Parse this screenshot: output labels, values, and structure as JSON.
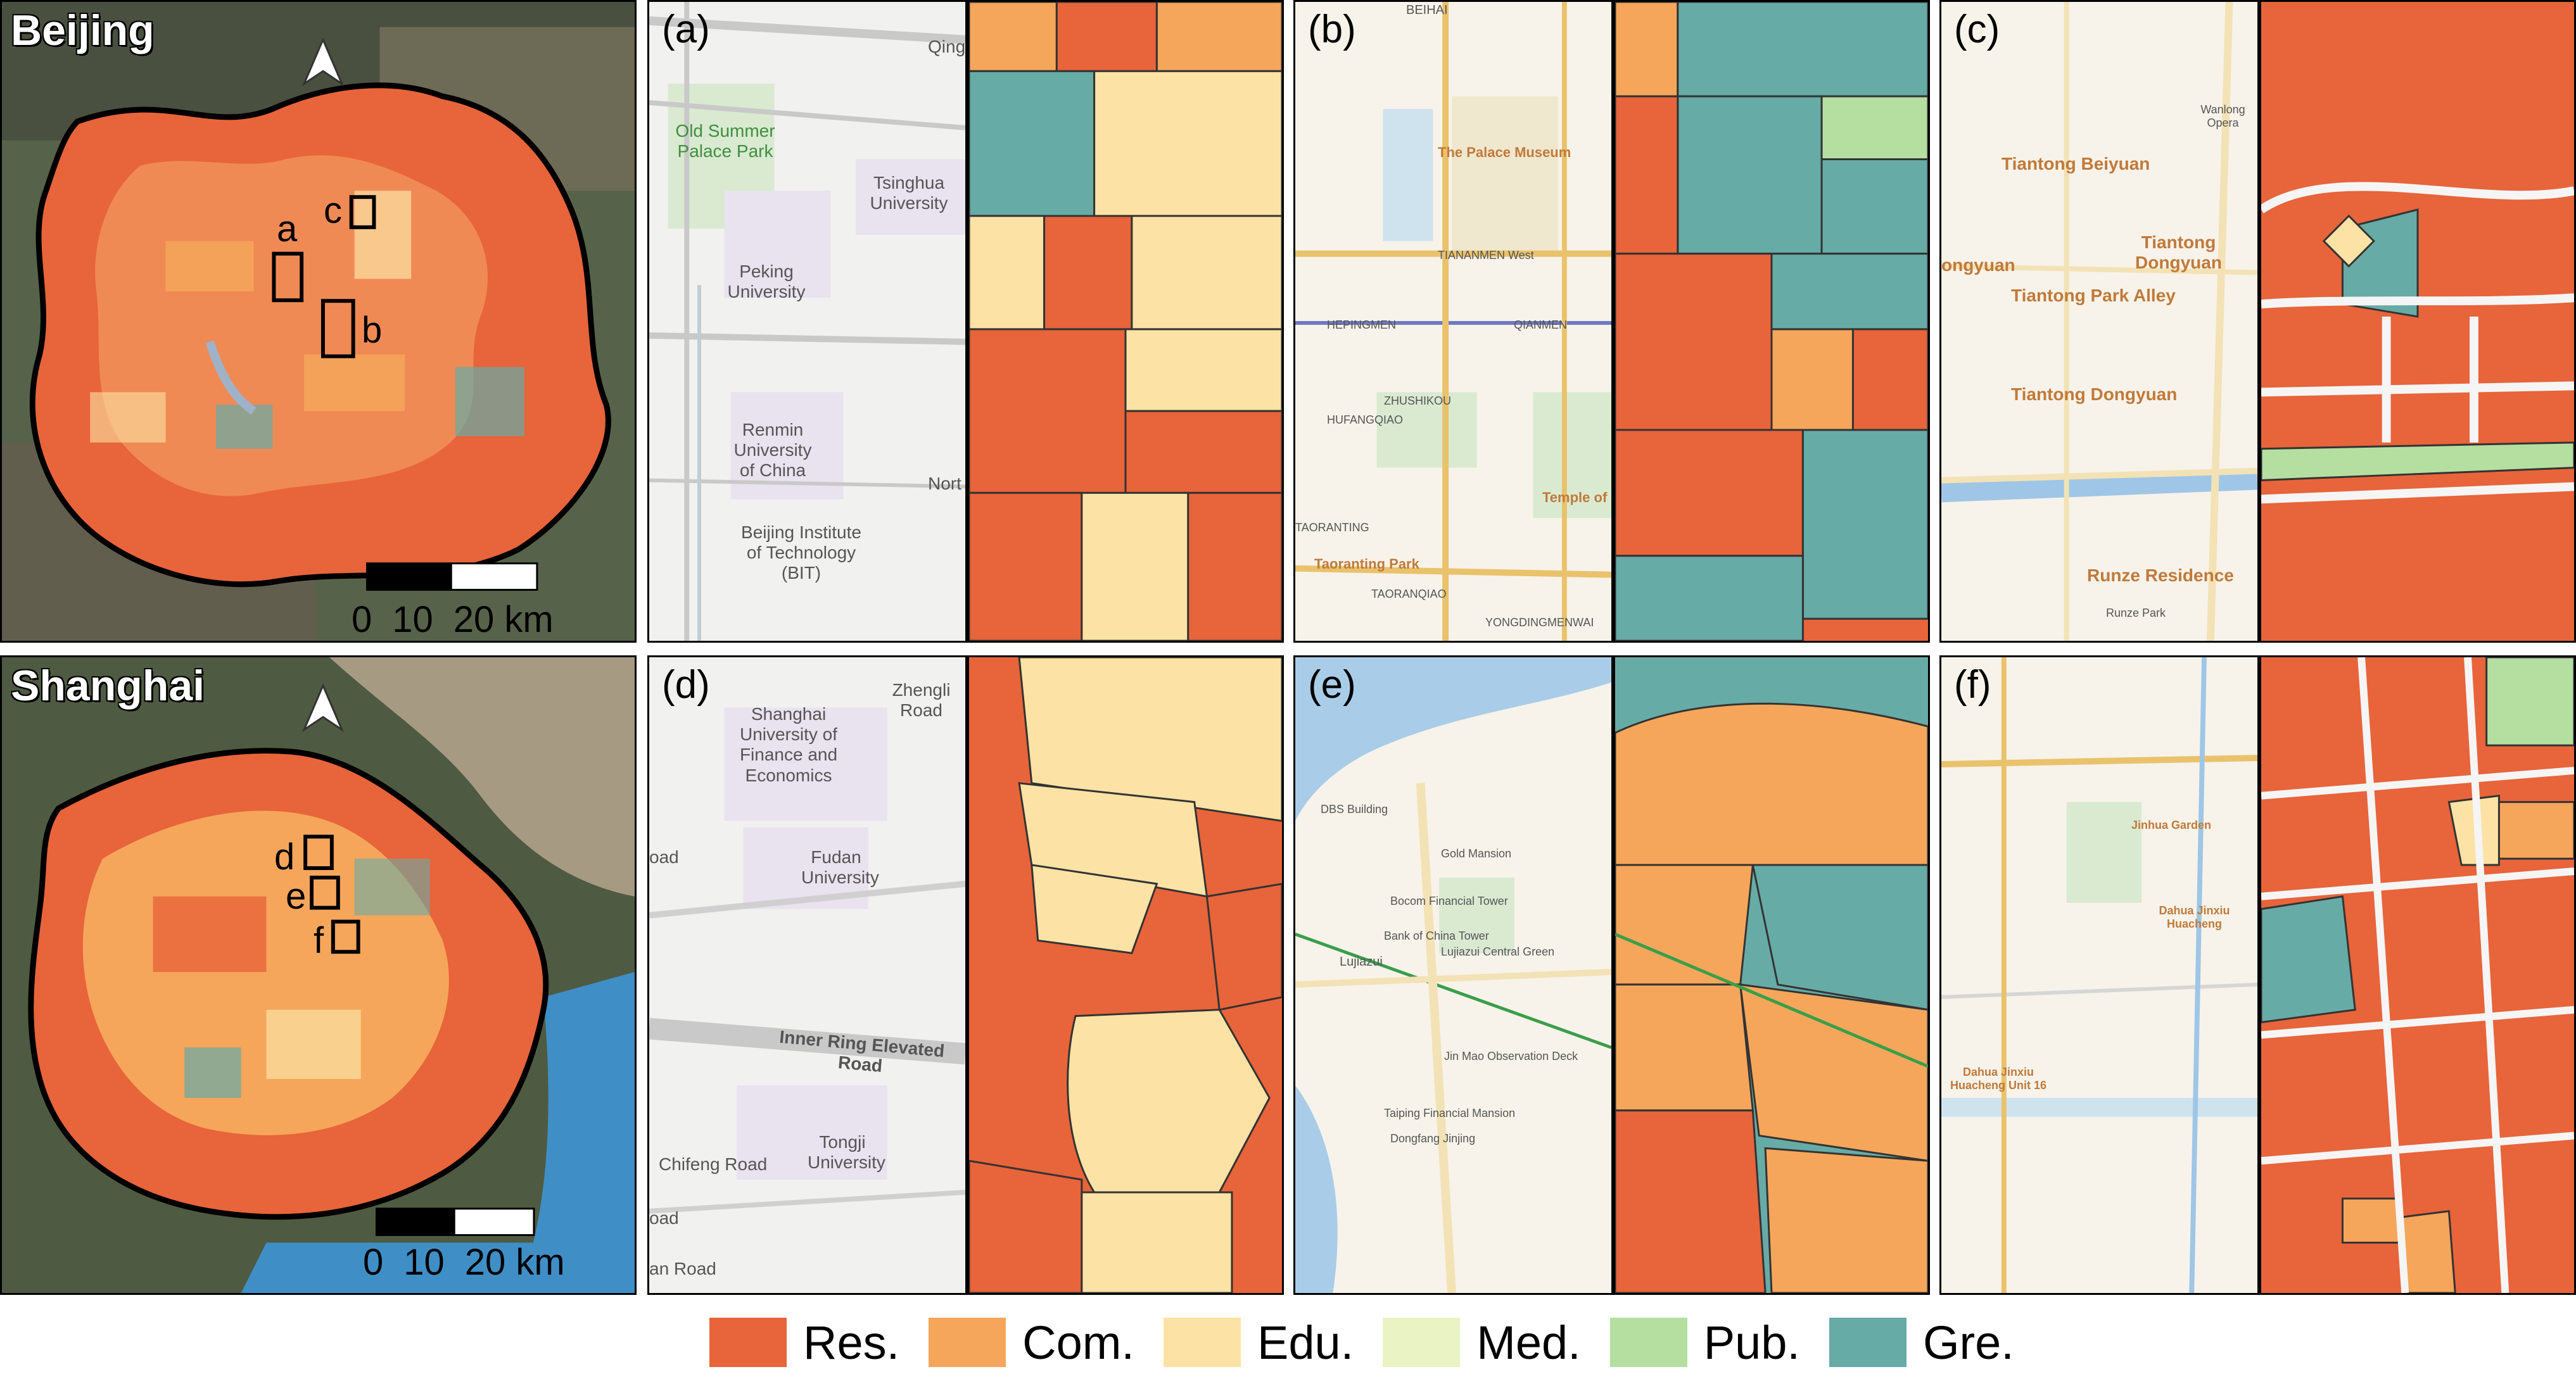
{
  "cities": [
    {
      "name": "Beijing",
      "boxes": [
        "a",
        "b",
        "c"
      ],
      "scale_labels": [
        "0",
        "10",
        "20 km"
      ]
    },
    {
      "name": "Shanghai",
      "boxes": [
        "d",
        "e",
        "f"
      ],
      "scale_labels": [
        "0",
        "10",
        "20 km"
      ]
    }
  ],
  "panels": [
    {
      "letter": "(a)",
      "labels": [
        "Qing",
        "Old Summer Palace Park",
        "Tsinghua University",
        "Peking University",
        "Renmin University of China",
        "Nort",
        "Beijing Institute of Technology (BIT)"
      ]
    },
    {
      "letter": "(b)",
      "labels": [
        "BEIHAI",
        "The Palace Museum",
        "TIANANMEN West",
        "HEPINGMEN",
        "QIANMEN",
        "ZHUSHIKOU",
        "HUFANGQIAO",
        "Temple of",
        "TAORANTING",
        "Taoranting Park",
        "TAORANQIAO",
        "YONGDINGMENWAI"
      ]
    },
    {
      "letter": "(c)",
      "labels": [
        "Wanlong Opera",
        "Tiantong Beiyuan",
        "Tiantong Dongyuan",
        "ongyuan",
        "Tiantong Park Alley",
        "Tiantong Dongyuan",
        "Runze Residence",
        "Runze Park"
      ]
    },
    {
      "letter": "(d)",
      "labels": [
        "Zhengli Road",
        "Shanghai University of Finance and Economics",
        "Fudan University",
        "oad",
        "Inner Ring Elevated Road",
        "Chifeng Road",
        "Tongji University",
        "oad",
        "an Road"
      ]
    },
    {
      "letter": "(e)",
      "labels": [
        "DBS Building",
        "Gold Mansion",
        "Bocom Financial Tower",
        "Bank of China Tower",
        "Lujiazui",
        "Lujiazui Central Green",
        "Jin Mao Observation Deck",
        "Taiping Financial Mansion",
        "Dongfang Jinjing"
      ]
    },
    {
      "letter": "(f)",
      "labels": [
        "Jinhua Garden",
        "Dahua Jinxiu Huacheng",
        "Dahua Jinxiu Huacheng Unit 16"
      ]
    }
  ],
  "legend": [
    {
      "label": "Res.",
      "color": "#E8643A"
    },
    {
      "label": "Com.",
      "color": "#F5A65B"
    },
    {
      "label": "Edu.",
      "color": "#FCE2A4"
    },
    {
      "label": "Med.",
      "color": "#EAF3C4"
    },
    {
      "label": "Pub.",
      "color": "#B5DFA0"
    },
    {
      "label": "Gre.",
      "color": "#67ABA6"
    }
  ]
}
